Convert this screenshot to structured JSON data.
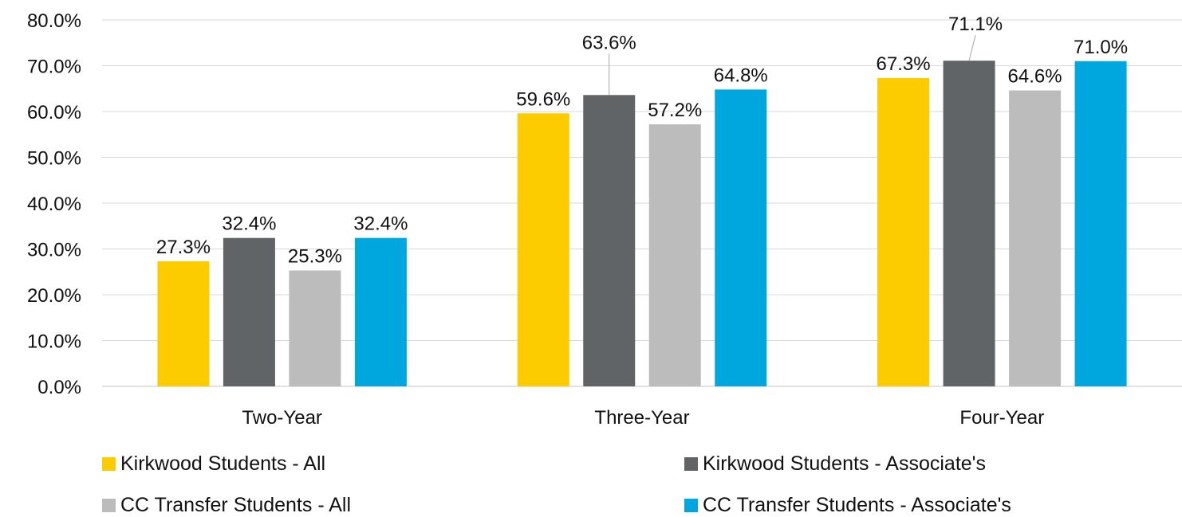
{
  "chart_data": {
    "type": "bar",
    "categories": [
      "Two-Year",
      "Three-Year",
      "Four-Year"
    ],
    "series": [
      {
        "name": "Kirkwood Students - All",
        "color": "#fccb00",
        "values": [
          27.3,
          59.6,
          67.3
        ],
        "labels": [
          "27.3%",
          "59.6%",
          "67.3%"
        ]
      },
      {
        "name": "Kirkwood Students - Associate's",
        "color": "#606467",
        "values": [
          32.4,
          63.6,
          71.1
        ],
        "labels": [
          "32.4%",
          "63.6%",
          "71.1%"
        ]
      },
      {
        "name": "CC Transfer Students - All",
        "color": "#bcbcbc",
        "values": [
          25.3,
          57.2,
          64.6
        ],
        "labels": [
          "25.3%",
          "57.2%",
          "64.6%"
        ]
      },
      {
        "name": "CC Transfer Students - Associate's",
        "color": "#00a6de",
        "values": [
          32.4,
          64.8,
          71.0
        ],
        "labels": [
          "32.4%",
          "64.8%",
          "71.0%"
        ]
      }
    ],
    "yticks": [
      "0.0%",
      "10.0%",
      "20.0%",
      "30.0%",
      "40.0%",
      "50.0%",
      "60.0%",
      "70.0%",
      "80.0%"
    ],
    "ylim": [
      0,
      80
    ],
    "title": "",
    "xlabel": "",
    "ylabel": "",
    "grid": true,
    "legend_position": "bottom"
  }
}
